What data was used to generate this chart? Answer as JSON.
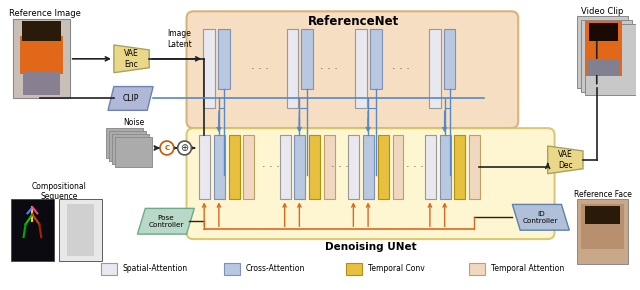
{
  "title": "ReferenceNet",
  "denoising_title": "Denoising UNet",
  "bg_color": "#ffffff",
  "ref_net_bg": "#f5d9b8",
  "ref_net_border": "#d4a86c",
  "denoising_bg": "#fdf5c8",
  "denoising_border": "#d4c060",
  "spatial_attn_color": "#e8e8ee",
  "cross_attn_color": "#b8c8e0",
  "temporal_conv_color": "#e8c040",
  "temporal_attn_color": "#f0d8c0",
  "vae_enc_color": "#e8d888",
  "vae_dec_color": "#e8d888",
  "clip_color": "#b0b8d8",
  "pose_ctrl_color": "#b8d8c8",
  "id_ctrl_color": "#b0c0d8",
  "arrow_blue": "#5588cc",
  "arrow_orange": "#dd6622",
  "arrow_black": "#222222",
  "spatial_attn_label": "Spatial-Attention",
  "cross_attn_label": "Cross-Attention",
  "temporal_conv_label": "Temporal Conv",
  "temporal_attn_label": "Temporal Attention"
}
